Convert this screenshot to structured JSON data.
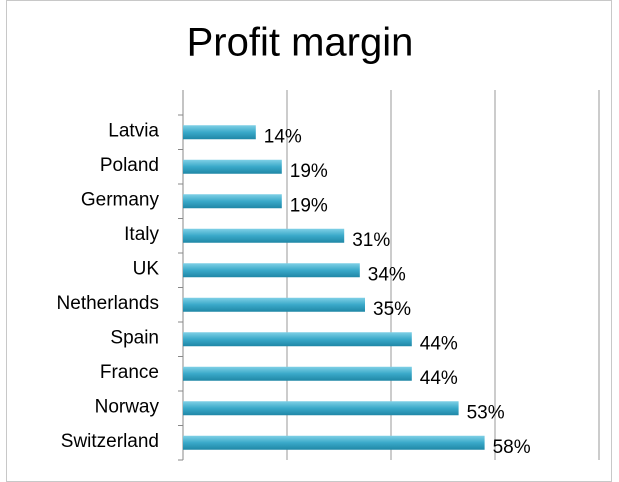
{
  "chart_data": {
    "type": "bar",
    "orientation": "horizontal",
    "title": "Profit margin",
    "categories": [
      "Latvia",
      "Poland",
      "Germany",
      "Italy",
      "UK",
      "Netherlands",
      "Spain",
      "France",
      "Norway",
      "Switzerland"
    ],
    "values": [
      14,
      19,
      19,
      31,
      34,
      35,
      44,
      44,
      53,
      58
    ],
    "value_labels": [
      "14%",
      "19%",
      "19%",
      "31%",
      "34%",
      "35%",
      "44%",
      "44%",
      "53%",
      "58%"
    ],
    "color": "#3aa9c9",
    "xlim": [
      0,
      80
    ],
    "xticks": [
      0,
      20,
      40,
      60,
      80
    ],
    "grid": true
  }
}
